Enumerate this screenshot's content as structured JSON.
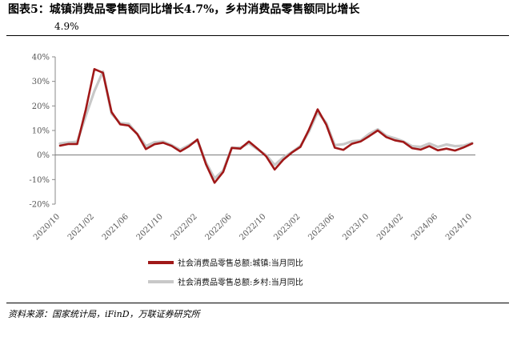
{
  "title": {
    "line1": "图表5：城镇消费品零售额同比增长4.7%，乡村消费品零售额同比增长",
    "line2": "4.9%"
  },
  "source": "资料来源：国家统计局，iFinD，万联证券研究所",
  "chart_data": {
    "type": "line",
    "x": [
      "2020/10",
      "2020/11",
      "2020/12",
      "2021/01",
      "2021/02",
      "2021/03",
      "2021/04",
      "2021/05",
      "2021/06",
      "2021/07",
      "2021/08",
      "2021/09",
      "2021/10",
      "2021/11",
      "2021/12",
      "2022/01",
      "2022/02",
      "2022/03",
      "2022/04",
      "2022/05",
      "2022/06",
      "2022/07",
      "2022/08",
      "2022/09",
      "2022/10",
      "2022/11",
      "2022/12",
      "2023/01",
      "2023/02",
      "2023/03",
      "2023/04",
      "2023/05",
      "2023/06",
      "2023/07",
      "2023/08",
      "2023/09",
      "2023/10",
      "2023/11",
      "2023/12",
      "2024/01",
      "2024/02",
      "2024/03",
      "2024/04",
      "2024/05",
      "2024/06",
      "2024/07",
      "2024/08",
      "2024/09",
      "2024/10"
    ],
    "x_tick_labels": [
      "2020/10",
      "2021/02",
      "2021/06",
      "2021/10",
      "2022/02",
      "2022/06",
      "2022/10",
      "2023/02",
      "2023/06",
      "2023/10",
      "2024/02",
      "2024/06",
      "2024/10"
    ],
    "ylim": [
      -20,
      40
    ],
    "y_ticks": [
      -20,
      -10,
      0,
      10,
      20,
      30,
      40
    ],
    "y_tick_labels": [
      "-20%",
      "-10%",
      "0%",
      "10%",
      "20%",
      "30%",
      "40%"
    ],
    "legend_placement": "bottom",
    "series": [
      {
        "name": "社会消费品零售总额:城镇:当月同比",
        "color": "#a01818",
        "values": [
          3.8,
          4.5,
          4.5,
          18.5,
          35,
          33.5,
          17.5,
          12.5,
          12,
          8.5,
          2.4,
          4.4,
          5,
          3.7,
          1.5,
          3.5,
          6.3,
          -3.8,
          -11.3,
          -6.9,
          2.9,
          2.6,
          5.5,
          2.6,
          -0.5,
          -5.9,
          -1.9,
          1,
          3.3,
          10.4,
          18.6,
          12.4,
          3,
          2.1,
          4.6,
          5.5,
          7.7,
          10,
          7.3,
          6,
          5.3,
          2.8,
          2.2,
          3.6,
          1.9,
          2.6,
          1.8,
          3.1,
          4.7
        ]
      },
      {
        "name": "社会消费品零售总额:乡村:当月同比",
        "color": "#c8c8c8",
        "values": [
          4.7,
          5.1,
          5.4,
          16,
          26,
          34,
          16.8,
          13,
          12.7,
          8.5,
          3.6,
          5.2,
          5.5,
          4,
          2.1,
          4,
          6,
          -3.1,
          -9.5,
          -6.3,
          3,
          3,
          4.8,
          2.3,
          0,
          -4.1,
          -1,
          1.2,
          3.7,
          9.6,
          17.5,
          13.1,
          4,
          4.4,
          5.6,
          5.9,
          8.6,
          10.5,
          7.8,
          6.8,
          5.5,
          3.6,
          3.3,
          4.7,
          3.3,
          4.3,
          3.6,
          3.8,
          4.9
        ]
      }
    ]
  }
}
